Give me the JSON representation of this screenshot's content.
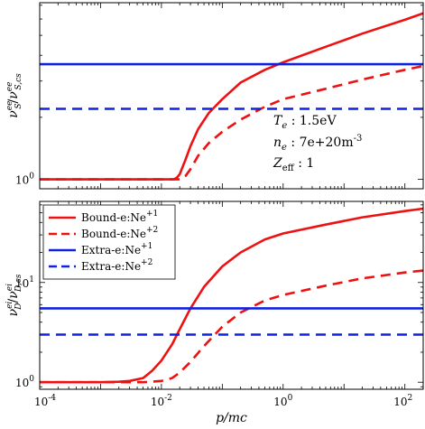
{
  "chart_data": [
    {
      "type": "line",
      "panel": "top",
      "ylabel_parts": {
        "base": "ν",
        "sub": "S",
        "sup": "ee",
        "sep": "/",
        "base2": "ν",
        "sub2": "S,cs",
        "sup2": "ee"
      },
      "xscale": "log",
      "yscale": "log",
      "xlim": [
        0.0001,
        200
      ],
      "ylim": [
        0.9,
        7.2
      ],
      "ytick_labels": [
        "10",
        "0"
      ],
      "annotations": [
        "T_e : 1.5eV",
        "n_e : 7e+20m^-3",
        "Z_eff : 1"
      ],
      "series": [
        {
          "color": "#ee1111",
          "style": "solid",
          "x": [
            0.0001,
            0.01,
            0.016,
            0.018,
            0.02,
            0.025,
            0.03,
            0.04,
            0.06,
            0.1,
            0.2,
            0.5,
            1,
            5,
            20,
            100,
            200
          ],
          "y": [
            1.0,
            1.0,
            1.0,
            1.02,
            1.06,
            1.25,
            1.45,
            1.75,
            2.1,
            2.45,
            2.95,
            3.4,
            3.7,
            4.4,
            5.1,
            5.95,
            6.4
          ]
        },
        {
          "color": "#ee1111",
          "style": "dashed",
          "x": [
            0.0001,
            0.01,
            0.02,
            0.025,
            0.03,
            0.04,
            0.06,
            0.1,
            0.2,
            0.5,
            1,
            5,
            20,
            100,
            200
          ],
          "y": [
            1.0,
            1.0,
            1.0,
            1.04,
            1.12,
            1.3,
            1.5,
            1.7,
            1.95,
            2.25,
            2.45,
            2.75,
            3.05,
            3.4,
            3.55
          ]
        },
        {
          "color": "#1122dd",
          "style": "solid",
          "x": [
            0.0001,
            200
          ],
          "y": [
            3.62,
            3.62
          ]
        },
        {
          "color": "#1122dd",
          "style": "dashed",
          "x": [
            0.0001,
            200
          ],
          "y": [
            2.2,
            2.2
          ]
        }
      ]
    },
    {
      "type": "line",
      "panel": "bottom",
      "ylabel_parts": {
        "base": "ν",
        "sub": "D",
        "sup": "ei",
        "sep": "/",
        "base2": "ν",
        "sub2": "D,cs",
        "sup2": "ei"
      },
      "xlabel": "p/mc",
      "xscale": "log",
      "yscale": "log",
      "xlim": [
        0.0001,
        200
      ],
      "ylim": [
        0.85,
        65
      ],
      "xticks": [
        0.0001,
        0.01,
        1,
        100
      ],
      "xtick_labels": [
        {
          "base": "10",
          "exp": "-4"
        },
        {
          "base": "10",
          "exp": "-2"
        },
        {
          "base": "10",
          "exp": "0"
        },
        {
          "base": "10",
          "exp": "2"
        }
      ],
      "ytick_labels": [
        {
          "base": "10",
          "exp": "0"
        },
        {
          "base": "10",
          "exp": "1"
        }
      ],
      "legend": {
        "position": "top-left",
        "entries": [
          {
            "text": "Bound-e:Ne",
            "sup": "+1",
            "color": "#ee1111",
            "style": "solid"
          },
          {
            "text": "Bound-e:Ne",
            "sup": "+2",
            "color": "#ee1111",
            "style": "dashed"
          },
          {
            "text": "Extra-e:Ne",
            "sup": "+1",
            "color": "#1122dd",
            "style": "solid"
          },
          {
            "text": "Extra-e:Ne",
            "sup": "+2",
            "color": "#1122dd",
            "style": "dashed"
          }
        ]
      },
      "series": [
        {
          "color": "#ee1111",
          "style": "solid",
          "x": [
            0.0001,
            0.001,
            0.002,
            0.003,
            0.005,
            0.007,
            0.01,
            0.015,
            0.02,
            0.03,
            0.05,
            0.1,
            0.2,
            0.5,
            1,
            5,
            20,
            100,
            200
          ],
          "y": [
            1.0,
            1.0,
            1.01,
            1.03,
            1.1,
            1.3,
            1.65,
            2.4,
            3.4,
            5.5,
            9.0,
            14.5,
            20,
            27,
            31,
            38,
            45,
            52,
            55
          ]
        },
        {
          "color": "#ee1111",
          "style": "dashed",
          "x": [
            0.0001,
            0.005,
            0.01,
            0.015,
            0.02,
            0.03,
            0.05,
            0.1,
            0.2,
            0.5,
            1,
            5,
            20,
            100,
            200
          ],
          "y": [
            1.0,
            1.0,
            1.03,
            1.1,
            1.25,
            1.6,
            2.3,
            3.6,
            5.0,
            6.6,
            7.5,
            9.3,
            11.0,
            12.6,
            13.2
          ]
        },
        {
          "color": "#1122dd",
          "style": "solid",
          "x": [
            0.0001,
            200
          ],
          "y": [
            5.5,
            5.5
          ]
        },
        {
          "color": "#1122dd",
          "style": "dashed",
          "x": [
            0.0001,
            200
          ],
          "y": [
            3.0,
            3.0
          ]
        }
      ]
    }
  ]
}
